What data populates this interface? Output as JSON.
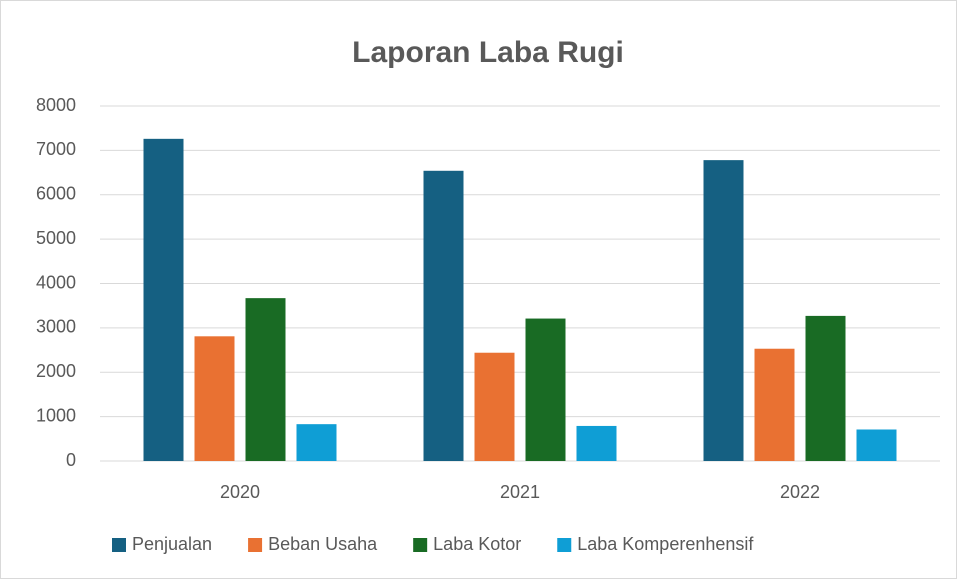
{
  "chart_data": {
    "type": "bar",
    "title": "Laporan Laba Rugi",
    "categories": [
      "2020",
      "2021",
      "2022"
    ],
    "series": [
      {
        "name": "Penjualan",
        "color": "#156082",
        "values": [
          7260,
          6540,
          6780
        ]
      },
      {
        "name": "Beban Usaha",
        "color": "#e97132",
        "values": [
          2810,
          2440,
          2530
        ]
      },
      {
        "name": "Laba Kotor",
        "color": "#196b24",
        "values": [
          3670,
          3210,
          3270
        ]
      },
      {
        "name": "Laba Komperenhensif",
        "color": "#0f9ed5",
        "values": [
          830,
          790,
          710
        ]
      }
    ],
    "ylim": [
      0,
      8000
    ],
    "yticks": [
      0,
      1000,
      2000,
      3000,
      4000,
      5000,
      6000,
      7000,
      8000
    ],
    "grid": true,
    "legend": "bottom"
  }
}
